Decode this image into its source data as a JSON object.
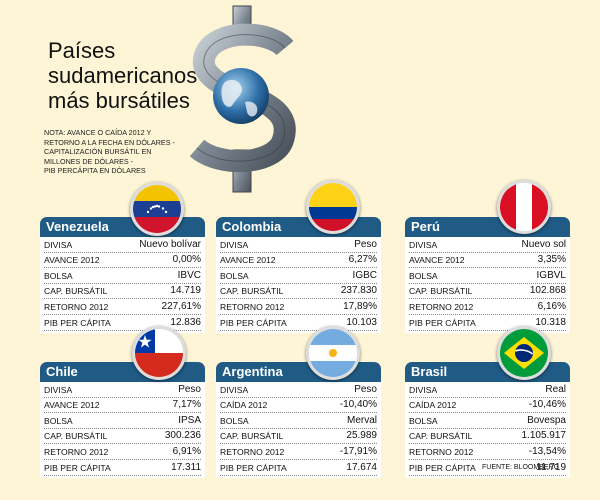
{
  "title": {
    "line1": "Países",
    "line2": "sudamericanos",
    "line3": "más bursátiles"
  },
  "note": {
    "line1": "NOTA: AVANCE O CAÍDA 2012 Y",
    "line2": "RETORNO A LA FECHA EN DÓLARES -",
    "line3": "CAPITALIZACIÓN BURSÁTIL EN",
    "line4": "MILLONES DE DÓLARES -",
    "line5": "PIB PERCÁPITA EN DÓLARES"
  },
  "source": "FUENTE: BLOOMBERG",
  "colors": {
    "header": "#1f5b85",
    "background": "#fdf5d6"
  },
  "countries": [
    {
      "name": "Venezuela",
      "rows": [
        {
          "label": "DIVISA",
          "value": "Nuevo bolívar"
        },
        {
          "label": "AVANCE 2012",
          "value": "0,00%"
        },
        {
          "label": "BOLSA",
          "value": "IBVC"
        },
        {
          "label": "CAP. BURSÁTIL",
          "value": "14.719"
        },
        {
          "label": "RETORNO 2012",
          "value": "227,61%"
        },
        {
          "label": "PIB PER CÁPITA",
          "value": "12.836"
        }
      ]
    },
    {
      "name": "Colombia",
      "rows": [
        {
          "label": "DIVISA",
          "value": "Peso"
        },
        {
          "label": "AVANCE 2012",
          "value": "6,27%"
        },
        {
          "label": "BOLSA",
          "value": "IGBC"
        },
        {
          "label": "CAP. BURSÁTIL",
          "value": "237.830"
        },
        {
          "label": "RETORNO 2012",
          "value": "17,89%"
        },
        {
          "label": "PIB PER CÁPITA",
          "value": "10.103"
        }
      ]
    },
    {
      "name": "Perú",
      "rows": [
        {
          "label": "DIVISA",
          "value": "Nuevo sol"
        },
        {
          "label": "AVANCE 2012",
          "value": "3,35%"
        },
        {
          "label": "BOLSA",
          "value": "IGBVL"
        },
        {
          "label": "CAP. BURSÁTIL",
          "value": "102.868"
        },
        {
          "label": "RETORNO 2012",
          "value": "6,16%"
        },
        {
          "label": "PIB PER CÁPITA",
          "value": "10.318"
        }
      ]
    },
    {
      "name": "Chile",
      "rows": [
        {
          "label": "DIVISA",
          "value": "Peso"
        },
        {
          "label": "AVANCE 2012",
          "value": "7,17%"
        },
        {
          "label": "BOLSA",
          "value": "IPSA"
        },
        {
          "label": "CAP. BURSÁTIL",
          "value": "300.236"
        },
        {
          "label": "RETORNO 2012",
          "value": "6,91%"
        },
        {
          "label": "PIB PER CÁPITA",
          "value": "17.311"
        }
      ]
    },
    {
      "name": "Argentina",
      "rows": [
        {
          "label": "DIVISA",
          "value": "Peso"
        },
        {
          "label": "CAÍDA 2012",
          "value": "-10,40%"
        },
        {
          "label": "BOLSA",
          "value": "Merval"
        },
        {
          "label": "CAP. BURSÁTIL",
          "value": "25.989"
        },
        {
          "label": "RETORNO 2012",
          "value": "-17,91%"
        },
        {
          "label": "PIB PER CÁPITA",
          "value": "17.674"
        }
      ]
    },
    {
      "name": "Brasil",
      "rows": [
        {
          "label": "DIVISA",
          "value": "Real"
        },
        {
          "label": "CAÍDA 2012",
          "value": "-10,46%"
        },
        {
          "label": "BOLSA",
          "value": "Bovespa"
        },
        {
          "label": "CAP. BURSÁTIL",
          "value": "1.105.917"
        },
        {
          "label": "RETORNO 2012",
          "value": "-13,54%"
        },
        {
          "label": "PIB PER CÁPITA",
          "value": "11.719"
        }
      ]
    }
  ]
}
